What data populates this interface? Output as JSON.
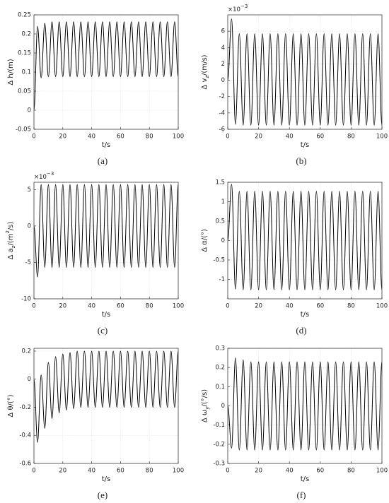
{
  "chart_data": [
    {
      "type": "line",
      "caption": "(a)",
      "xlabel": "t/s",
      "ylabel": [
        {
          "text": "Δ h/(m)"
        }
      ],
      "x": [
        0,
        2.5,
        5,
        7.5,
        10,
        12.5,
        15,
        17.5,
        20,
        22.5,
        25,
        27.5,
        30,
        32.5,
        35,
        37.5,
        40,
        42.5,
        45,
        47.5,
        50,
        52.5,
        55,
        57.5,
        60,
        62.5,
        65,
        67.5,
        70,
        72.5,
        75,
        77.5,
        80,
        82.5,
        85,
        87.5,
        90,
        92.5,
        95,
        97.5,
        100
      ],
      "series": [
        {
          "color": "#000000",
          "values": [
            0,
            0.22,
            0.085,
            0.228,
            0.088,
            0.232,
            0.088,
            0.232,
            0.088,
            0.232,
            0.088,
            0.232,
            0.088,
            0.232,
            0.088,
            0.232,
            0.088,
            0.232,
            0.088,
            0.232,
            0.088,
            0.232,
            0.088,
            0.232,
            0.088,
            0.232,
            0.088,
            0.232,
            0.088,
            0.232,
            0.088,
            0.232,
            0.088,
            0.232,
            0.088,
            0.232,
            0.088,
            0.232,
            0.088,
            0.232,
            0.088
          ]
        }
      ],
      "xlim": [
        0,
        100
      ],
      "xticks": [
        0,
        20,
        40,
        60,
        80,
        100
      ],
      "ylim": [
        -0.05,
        0.25
      ],
      "yticks": [
        -0.05,
        0,
        0.05,
        0.1,
        0.15,
        0.2,
        0.25
      ],
      "grid": true
    },
    {
      "type": "line",
      "caption": "(b)",
      "xlabel": "t/s",
      "ylabel": [
        {
          "text": "Δ v"
        },
        {
          "text": "z",
          "baseline": "sub"
        },
        {
          "text": "/(m/s)"
        }
      ],
      "exponent": [
        {
          "text": "×10"
        },
        {
          "text": "−3",
          "baseline": "super"
        }
      ],
      "x": [
        0,
        2.5,
        5,
        7.5,
        10,
        12.5,
        15,
        17.5,
        20,
        22.5,
        25,
        27.5,
        30,
        32.5,
        35,
        37.5,
        40,
        42.5,
        45,
        47.5,
        50,
        52.5,
        55,
        57.5,
        60,
        62.5,
        65,
        67.5,
        70,
        72.5,
        75,
        77.5,
        80,
        82.5,
        85,
        87.5,
        90,
        92.5,
        95,
        97.5,
        100
      ],
      "series": [
        {
          "color": "#000000",
          "values": [
            0,
            7.5,
            -5.4,
            5.7,
            -5.5,
            5.7,
            -5.5,
            5.7,
            -5.5,
            5.7,
            -5.5,
            5.7,
            -5.5,
            5.7,
            -5.5,
            5.7,
            -5.5,
            5.7,
            -5.5,
            5.7,
            -5.5,
            5.7,
            -5.5,
            5.7,
            -5.5,
            5.7,
            -5.5,
            5.7,
            -5.5,
            5.7,
            -5.5,
            5.7,
            -5.5,
            5.7,
            -5.5,
            5.7,
            -5.5,
            5.7,
            -5.5,
            5.7,
            -5.5
          ]
        }
      ],
      "xlim": [
        0,
        100
      ],
      "xticks": [
        0,
        20,
        40,
        60,
        80,
        100
      ],
      "ylim": [
        -6,
        8
      ],
      "yticks": [
        -6,
        -4,
        -2,
        0,
        2,
        4,
        6
      ],
      "grid": true
    },
    {
      "type": "line",
      "caption": "(c)",
      "xlabel": "t/s",
      "ylabel": [
        {
          "text": "Δ a"
        },
        {
          "text": "z",
          "baseline": "sub"
        },
        {
          "text": "/(m"
        },
        {
          "text": "2",
          "baseline": "super"
        },
        {
          "text": "/s)"
        }
      ],
      "exponent": [
        {
          "text": "×10"
        },
        {
          "text": "−3",
          "baseline": "super"
        }
      ],
      "x": [
        0,
        2.5,
        5,
        7.5,
        10,
        12.5,
        15,
        17.5,
        20,
        22.5,
        25,
        27.5,
        30,
        32.5,
        35,
        37.5,
        40,
        42.5,
        45,
        47.5,
        50,
        52.5,
        55,
        57.5,
        60,
        62.5,
        65,
        67.5,
        70,
        72.5,
        75,
        77.5,
        80,
        82.5,
        85,
        87.5,
        90,
        92.5,
        95,
        97.5,
        100
      ],
      "series": [
        {
          "color": "#000000",
          "values": [
            0,
            -7,
            5.7,
            -5.7,
            5.7,
            -5.7,
            5.7,
            -5.7,
            5.7,
            -5.7,
            5.7,
            -5.7,
            5.7,
            -5.7,
            5.7,
            -5.7,
            5.7,
            -5.7,
            5.7,
            -5.7,
            5.7,
            -5.7,
            5.7,
            -5.7,
            5.7,
            -5.7,
            5.7,
            -5.7,
            5.7,
            -5.7,
            5.7,
            -5.7,
            5.7,
            -5.7,
            5.7,
            -5.7,
            5.7,
            -5.7,
            5.7,
            -5.7,
            5.7
          ]
        }
      ],
      "xlim": [
        0,
        100
      ],
      "xticks": [
        0,
        20,
        40,
        60,
        80,
        100
      ],
      "ylim": [
        -10,
        6
      ],
      "yticks": [
        -10,
        -5,
        0,
        5
      ],
      "grid": true
    },
    {
      "type": "line",
      "caption": "(d)",
      "xlabel": "t/s",
      "ylabel": [
        {
          "text": "Δ α/(°)"
        }
      ],
      "x": [
        0,
        2.5,
        5,
        7.5,
        10,
        12.5,
        15,
        17.5,
        20,
        22.5,
        25,
        27.5,
        30,
        32.5,
        35,
        37.5,
        40,
        42.5,
        45,
        47.5,
        50,
        52.5,
        55,
        57.5,
        60,
        62.5,
        65,
        67.5,
        70,
        72.5,
        75,
        77.5,
        80,
        82.5,
        85,
        87.5,
        90,
        92.5,
        95,
        97.5,
        100
      ],
      "series": [
        {
          "color": "#000000",
          "values": [
            0,
            1.45,
            -1.25,
            1.27,
            -1.27,
            1.27,
            -1.27,
            1.27,
            -1.27,
            1.27,
            -1.27,
            1.27,
            -1.27,
            1.27,
            -1.27,
            1.27,
            -1.27,
            1.27,
            -1.27,
            1.27,
            -1.27,
            1.27,
            -1.27,
            1.27,
            -1.27,
            1.27,
            -1.27,
            1.27,
            -1.27,
            1.27,
            -1.27,
            1.27,
            -1.27,
            1.27,
            -1.27,
            1.27,
            -1.27,
            1.27,
            -1.27,
            1.27,
            -1.27
          ]
        }
      ],
      "xlim": [
        0,
        100
      ],
      "xticks": [
        0,
        20,
        40,
        60,
        80,
        100
      ],
      "ylim": [
        -1.5,
        1.5
      ],
      "yticks": [
        -1,
        -0.5,
        0,
        0.5,
        1,
        1.5
      ],
      "grid": true
    },
    {
      "type": "line",
      "caption": "(e)",
      "xlabel": "t/s",
      "ylabel": [
        {
          "text": "Δ θ/(°)"
        }
      ],
      "x": [
        0,
        2.5,
        5,
        7.5,
        10,
        12.5,
        15,
        17.5,
        20,
        22.5,
        25,
        27.5,
        30,
        32.5,
        35,
        37.5,
        40,
        42.5,
        45,
        47.5,
        50,
        52.5,
        55,
        57.5,
        60,
        62.5,
        65,
        67.5,
        70,
        72.5,
        75,
        77.5,
        80,
        82.5,
        85,
        87.5,
        90,
        92.5,
        95,
        97.5,
        100
      ],
      "series": [
        {
          "color": "#000000",
          "values": [
            0,
            -0.45,
            0.03,
            -0.35,
            0.12,
            -0.28,
            0.16,
            -0.24,
            0.18,
            -0.22,
            0.19,
            -0.21,
            0.2,
            -0.2,
            0.2,
            -0.2,
            0.2,
            -0.2,
            0.2,
            -0.2,
            0.2,
            -0.2,
            0.2,
            -0.2,
            0.2,
            -0.2,
            0.2,
            -0.2,
            0.2,
            -0.2,
            0.2,
            -0.2,
            0.2,
            -0.2,
            0.2,
            -0.2,
            0.2,
            -0.2,
            0.2,
            -0.2,
            0.2
          ]
        }
      ],
      "xlim": [
        0,
        100
      ],
      "xticks": [
        0,
        20,
        40,
        60,
        80,
        100
      ],
      "ylim": [
        -0.6,
        0.22
      ],
      "yticks": [
        -0.6,
        -0.4,
        -0.2,
        0,
        0.2
      ],
      "grid": true
    },
    {
      "type": "line",
      "caption": "(f)",
      "xlabel": "t/s",
      "ylabel": [
        {
          "text": "Δ ω"
        },
        {
          "text": "y",
          "baseline": "sub"
        },
        {
          "text": "/(°/s)"
        }
      ],
      "x": [
        0,
        2.5,
        5,
        7.5,
        10,
        12.5,
        15,
        17.5,
        20,
        22.5,
        25,
        27.5,
        30,
        32.5,
        35,
        37.5,
        40,
        42.5,
        45,
        47.5,
        50,
        52.5,
        55,
        57.5,
        60,
        62.5,
        65,
        67.5,
        70,
        72.5,
        75,
        77.5,
        80,
        82.5,
        85,
        87.5,
        90,
        92.5,
        95,
        97.5,
        100
      ],
      "series": [
        {
          "color": "#000000",
          "values": [
            0,
            -0.22,
            0.25,
            -0.23,
            0.24,
            -0.23,
            0.23,
            -0.23,
            0.23,
            -0.23,
            0.23,
            -0.23,
            0.23,
            -0.23,
            0.23,
            -0.23,
            0.23,
            -0.23,
            0.23,
            -0.23,
            0.23,
            -0.23,
            0.23,
            -0.23,
            0.23,
            -0.23,
            0.23,
            -0.23,
            0.23,
            -0.23,
            0.23,
            -0.23,
            0.23,
            -0.23,
            0.23,
            -0.23,
            0.23,
            -0.23,
            0.23,
            -0.23,
            0.23
          ]
        }
      ],
      "xlim": [
        0,
        100
      ],
      "xticks": [
        0,
        20,
        40,
        60,
        80,
        100
      ],
      "ylim": [
        -0.3,
        0.3
      ],
      "yticks": [
        -0.3,
        -0.2,
        -0.1,
        0,
        0.1,
        0.2,
        0.3
      ],
      "grid": true
    }
  ]
}
